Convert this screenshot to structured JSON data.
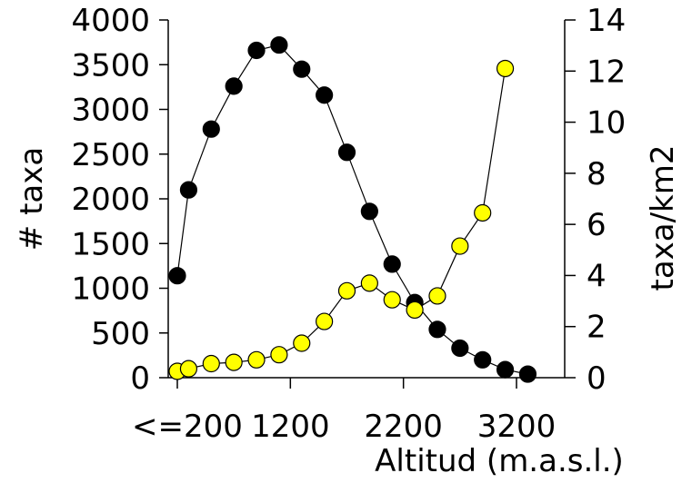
{
  "chart_data": {
    "type": "line",
    "title": "",
    "xlabel": "Altitud (m.a.s.l.)",
    "ylabel_left": "# taxa",
    "ylabel_right": "taxa/km2",
    "x_tick_labels": [
      "<=200",
      "1200",
      "2200",
      "3200"
    ],
    "x_tick_values": [
      200,
      1200,
      2200,
      3200
    ],
    "xlim": [
      200,
      3200
    ],
    "y_left_ticks": [
      0,
      500,
      1000,
      1500,
      2000,
      2500,
      3000,
      3500,
      4000
    ],
    "y_right_ticks": [
      0,
      2,
      4,
      6,
      8,
      10,
      12,
      14
    ],
    "ylim_left": [
      0,
      4000
    ],
    "ylim_right": [
      0,
      14
    ],
    "grid": false,
    "legend": "none",
    "series": [
      {
        "axis": "left",
        "color": "#000000",
        "x": [
          200,
          300,
          500,
          700,
          900,
          1100,
          1300,
          1500,
          1700,
          1900,
          2100,
          2300,
          2500,
          2700,
          2900,
          3100,
          3300
        ],
        "values": [
          1140,
          2100,
          2780,
          3260,
          3660,
          3720,
          3450,
          3160,
          2520,
          1860,
          1270,
          840,
          540,
          330,
          200,
          90,
          40
        ]
      },
      {
        "axis": "right",
        "color": "#ffff00",
        "x": [
          200,
          300,
          500,
          700,
          900,
          1100,
          1300,
          1500,
          1700,
          1900,
          2100,
          2300,
          2500,
          2700,
          2900,
          3100
        ],
        "values": [
          0.25,
          0.35,
          0.55,
          0.6,
          0.7,
          0.9,
          1.35,
          2.2,
          3.4,
          3.7,
          3.05,
          2.65,
          3.2,
          5.15,
          6.45,
          12.1
        ]
      }
    ]
  }
}
